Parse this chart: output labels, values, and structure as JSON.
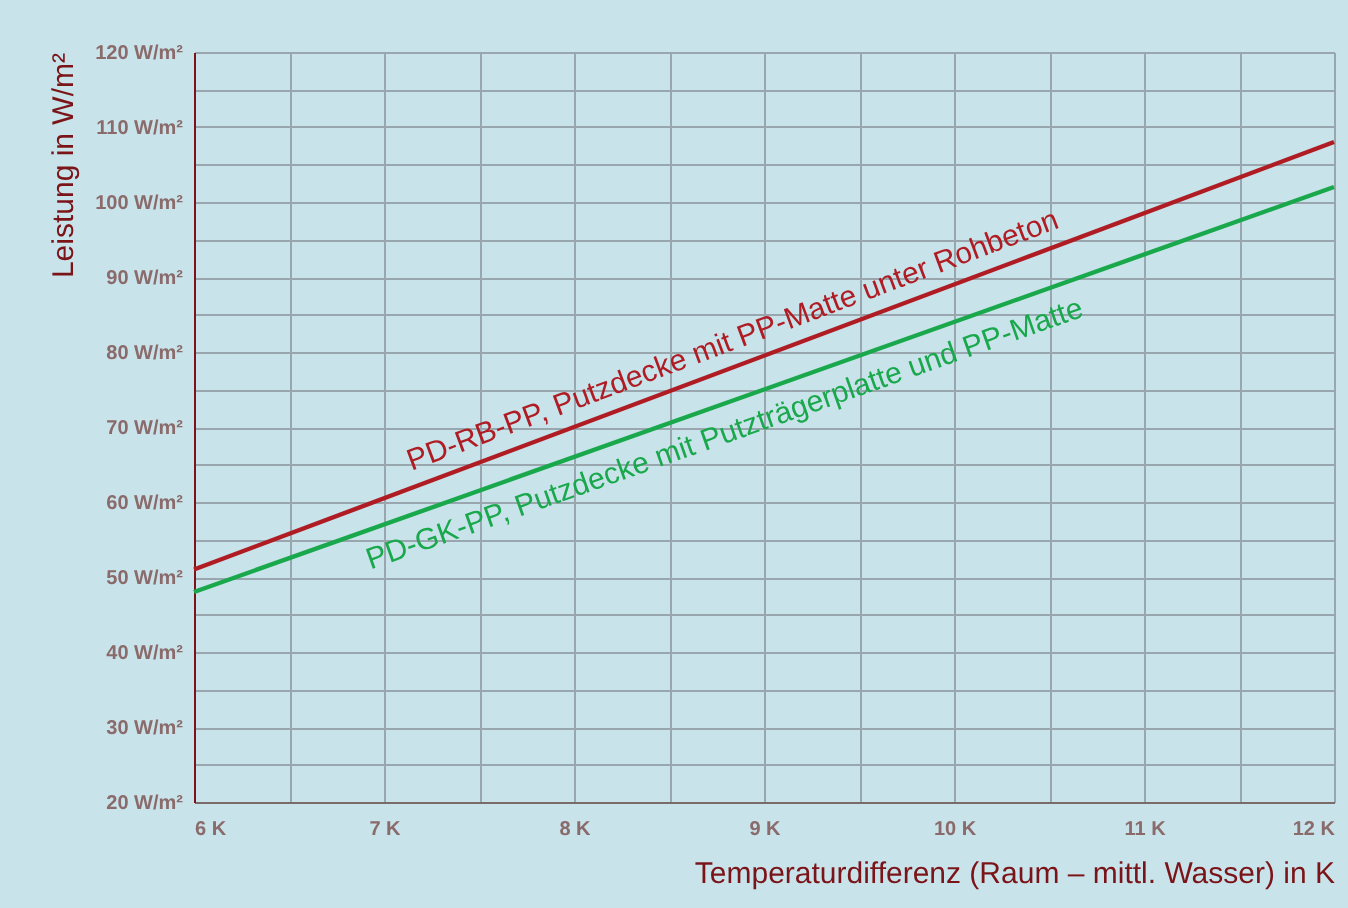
{
  "chart_data": {
    "type": "line",
    "xlabel": "Temperaturdifferenz (Raum – mittl. Wasser) in K",
    "ylabel": "Leistung in W/m²",
    "x": [
      6,
      12
    ],
    "series": [
      {
        "name": "PD-RB-PP, Putzdecke mit PP-Matte unter Rohbeton",
        "color": "#b01c24",
        "values": [
          51,
          108
        ]
      },
      {
        "name": "PD-GK-PP, Putzdecke mit Putzträgerplatte und PP-Matte",
        "color": "#19a84b",
        "values": [
          48,
          102
        ]
      }
    ],
    "xlim": [
      6,
      12
    ],
    "xticks": [
      {
        "value": 6,
        "label": "6 K"
      },
      {
        "value": 6.5,
        "label": null
      },
      {
        "value": 7,
        "label": "7 K"
      },
      {
        "value": 7.5,
        "label": null
      },
      {
        "value": 8,
        "label": "8 K"
      },
      {
        "value": 8.5,
        "label": null
      },
      {
        "value": 9,
        "label": "9 K"
      },
      {
        "value": 9.5,
        "label": null
      },
      {
        "value": 10,
        "label": "10 K"
      },
      {
        "value": 10.5,
        "label": null
      },
      {
        "value": 11,
        "label": "11 K"
      },
      {
        "value": 11.5,
        "label": null
      },
      {
        "value": 12,
        "label": "12 K"
      }
    ],
    "ylim": [
      20,
      120
    ],
    "yticks": [
      {
        "value": 20,
        "label": "20 W/m²"
      },
      {
        "value": 25,
        "label": null
      },
      {
        "value": 30,
        "label": "30 W/m²"
      },
      {
        "value": 35,
        "label": null
      },
      {
        "value": 40,
        "label": "40 W/m²"
      },
      {
        "value": 45,
        "label": null
      },
      {
        "value": 50,
        "label": "50 W/m²"
      },
      {
        "value": 55,
        "label": null
      },
      {
        "value": 60,
        "label": "60 W/m²"
      },
      {
        "value": 65,
        "label": null
      },
      {
        "value": 70,
        "label": "70 W/m²"
      },
      {
        "value": 75,
        "label": null
      },
      {
        "value": 80,
        "label": "80 W/m²"
      },
      {
        "value": 85,
        "label": null
      },
      {
        "value": 90,
        "label": "90 W/m²"
      },
      {
        "value": 95,
        "label": null
      },
      {
        "value": 100,
        "label": "100 W/m²"
      },
      {
        "value": 105,
        "label": null
      },
      {
        "value": 110,
        "label": "110 W/m²"
      },
      {
        "value": 115,
        "label": null
      },
      {
        "value": 120,
        "label": "120 W/m²"
      }
    ],
    "grid": true,
    "line_style": "solid"
  }
}
